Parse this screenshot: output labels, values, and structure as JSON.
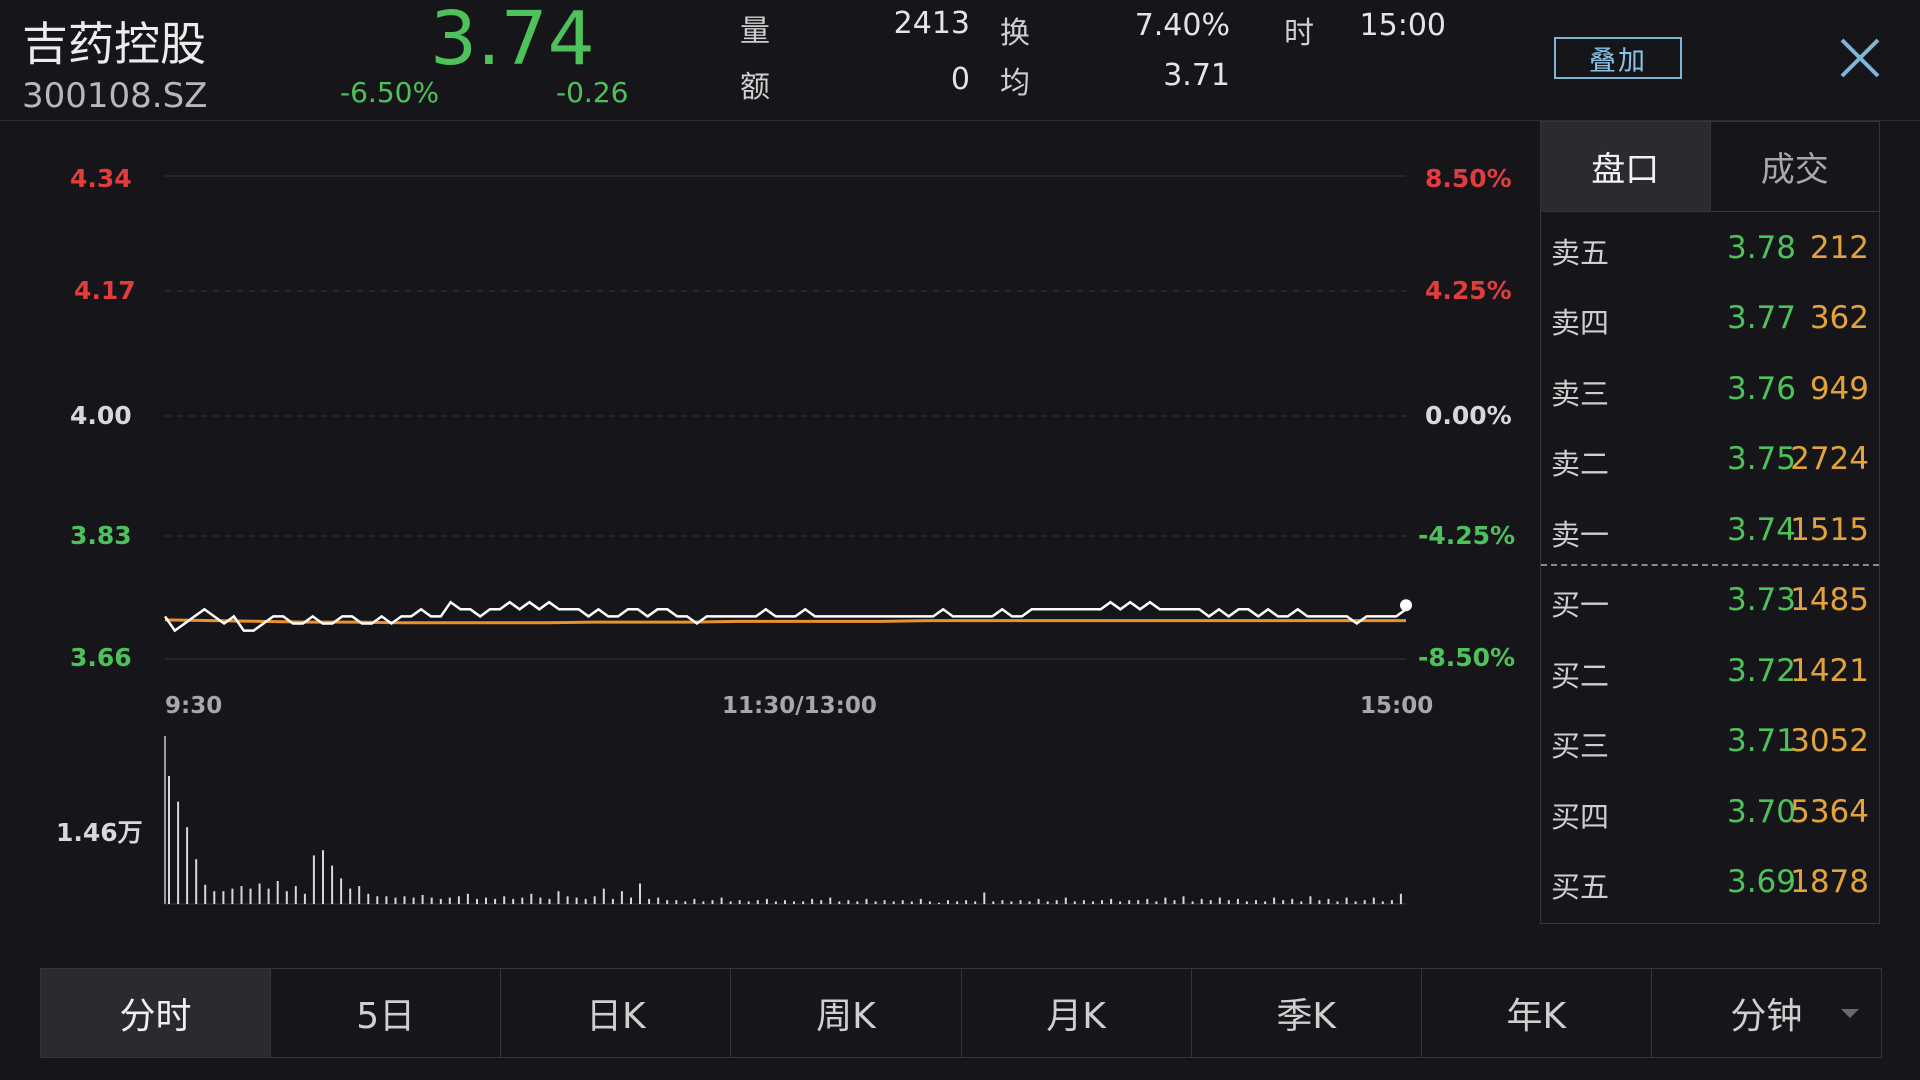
{
  "header": {
    "name": "吉药控股",
    "code": "300108.SZ",
    "price": "3.74",
    "change_pct": "-6.50%",
    "change_abs": "-0.26",
    "stats": {
      "volume_label": "量",
      "volume_value": "2413",
      "amount_label": "额",
      "amount_value": "0",
      "turnover_label": "换",
      "turnover_value": "7.40%",
      "avg_label": "均",
      "avg_value": "3.71",
      "time_label": "时",
      "time_value": "15:00"
    },
    "overlay_label": "叠加"
  },
  "colors": {
    "up": "#e13d3d",
    "down": "#4ec15a",
    "price_line": "#ffffff",
    "avg_line": "#e8912e",
    "volume": "#d8d8d8"
  },
  "chart_data": {
    "type": "line",
    "ylim": [
      3.66,
      4.34
    ],
    "price_ticks": [
      "4.34",
      "4.17",
      "4.00",
      "3.83",
      "3.66"
    ],
    "pct_ticks": [
      "8.50%",
      "4.25%",
      "0.00%",
      "-4.25%",
      "-8.50%"
    ],
    "x_ticks": [
      "9:30",
      "11:30/13:00",
      "15:00"
    ],
    "volume_label": "1.46万",
    "series": [
      {
        "name": "price",
        "values": [
          3.72,
          3.7,
          3.71,
          3.72,
          3.73,
          3.72,
          3.71,
          3.72,
          3.7,
          3.7,
          3.71,
          3.72,
          3.72,
          3.71,
          3.71,
          3.72,
          3.71,
          3.71,
          3.72,
          3.72,
          3.71,
          3.71,
          3.72,
          3.71,
          3.72,
          3.72,
          3.73,
          3.72,
          3.72,
          3.74,
          3.73,
          3.73,
          3.72,
          3.73,
          3.73,
          3.74,
          3.73,
          3.74,
          3.73,
          3.74,
          3.73,
          3.73,
          3.73,
          3.72,
          3.73,
          3.72,
          3.72,
          3.73,
          3.73,
          3.72,
          3.73,
          3.73,
          3.72,
          3.72,
          3.71,
          3.72,
          3.72,
          3.72,
          3.72,
          3.72,
          3.72,
          3.73,
          3.72,
          3.72,
          3.72,
          3.73,
          3.72,
          3.72,
          3.72,
          3.72,
          3.72,
          3.72,
          3.72,
          3.72,
          3.72,
          3.72,
          3.72,
          3.72,
          3.72,
          3.73,
          3.72,
          3.72,
          3.72,
          3.72,
          3.72,
          3.73,
          3.72,
          3.72,
          3.73,
          3.73,
          3.73,
          3.73,
          3.73,
          3.73,
          3.73,
          3.73,
          3.74,
          3.73,
          3.74,
          3.73,
          3.74,
          3.73,
          3.73,
          3.73,
          3.73,
          3.73,
          3.72,
          3.73,
          3.72,
          3.73,
          3.73,
          3.72,
          3.73,
          3.72,
          3.72,
          3.73,
          3.72,
          3.72,
          3.72,
          3.72,
          3.72,
          3.71,
          3.72,
          3.72,
          3.72,
          3.72,
          3.73
        ],
        "color_key": "price_line"
      },
      {
        "name": "average",
        "values": [
          3.715,
          3.714,
          3.713,
          3.712,
          3.712,
          3.711,
          3.711,
          3.711,
          3.711,
          3.712,
          3.712,
          3.712,
          3.713,
          3.713,
          3.713,
          3.713,
          3.714,
          3.714,
          3.714,
          3.714,
          3.714,
          3.714,
          3.714,
          3.714,
          3.714,
          3.714,
          3.714
        ],
        "color_key": "avg_line"
      }
    ],
    "volume_values": [
      1,
      0.8,
      0.6,
      0.35,
      0.15,
      0.1,
      0.1,
      0.12,
      0.14,
      0.12,
      0.16,
      0.12,
      0.18,
      0.1,
      0.14,
      0.08,
      0.38,
      0.42,
      0.3,
      0.2,
      0.12,
      0.14,
      0.08,
      0.06,
      0.06,
      0.05,
      0.06,
      0.05,
      0.07,
      0.05,
      0.04,
      0.05,
      0.06,
      0.08,
      0.04,
      0.05,
      0.04,
      0.06,
      0.04,
      0.05,
      0.08,
      0.05,
      0.04,
      0.1,
      0.06,
      0.05,
      0.04,
      0.06,
      0.12,
      0.04,
      0.1,
      0.05,
      0.16,
      0.04,
      0.05,
      0.03,
      0.03,
      0.02,
      0.04,
      0.02,
      0.03,
      0.05,
      0.02,
      0.03,
      0.02,
      0.03,
      0.04,
      0.02,
      0.03,
      0.02,
      0.02,
      0.04,
      0.03,
      0.05,
      0.02,
      0.03,
      0.02,
      0.04,
      0.02,
      0.03,
      0.02,
      0.03,
      0.02,
      0.04,
      0.02,
      0.01,
      0.03,
      0.02,
      0.03,
      0.02,
      0.09,
      0.02,
      0.03,
      0.02,
      0.03,
      0.02,
      0.04,
      0.02,
      0.03,
      0.05,
      0.02,
      0.03,
      0.02,
      0.03,
      0.04,
      0.02,
      0.03,
      0.03,
      0.04,
      0.02,
      0.05,
      0.03,
      0.06,
      0.02,
      0.04,
      0.03,
      0.05,
      0.03,
      0.04,
      0.02,
      0.03,
      0.02,
      0.05,
      0.03,
      0.04,
      0.02,
      0.06,
      0.03,
      0.04,
      0.02,
      0.05,
      0.02,
      0.03,
      0.05,
      0.02,
      0.03,
      0.08
    ]
  },
  "order_book": {
    "tabs": [
      "盘口",
      "成交"
    ],
    "asks": [
      {
        "label": "卖五",
        "price": "3.78",
        "volume": "212"
      },
      {
        "label": "卖四",
        "price": "3.77",
        "volume": "362"
      },
      {
        "label": "卖三",
        "price": "3.76",
        "volume": "949"
      },
      {
        "label": "卖二",
        "price": "3.75",
        "volume": "2724"
      },
      {
        "label": "卖一",
        "price": "3.74",
        "volume": "1515"
      }
    ],
    "bids": [
      {
        "label": "买一",
        "price": "3.73",
        "volume": "1485"
      },
      {
        "label": "买二",
        "price": "3.72",
        "volume": "1421"
      },
      {
        "label": "买三",
        "price": "3.71",
        "volume": "3052"
      },
      {
        "label": "买四",
        "price": "3.70",
        "volume": "5364"
      },
      {
        "label": "买五",
        "price": "3.69",
        "volume": "1878"
      }
    ]
  },
  "tabs": [
    "分时",
    "5日",
    "日K",
    "周K",
    "月K",
    "季K",
    "年K",
    "分钟"
  ]
}
